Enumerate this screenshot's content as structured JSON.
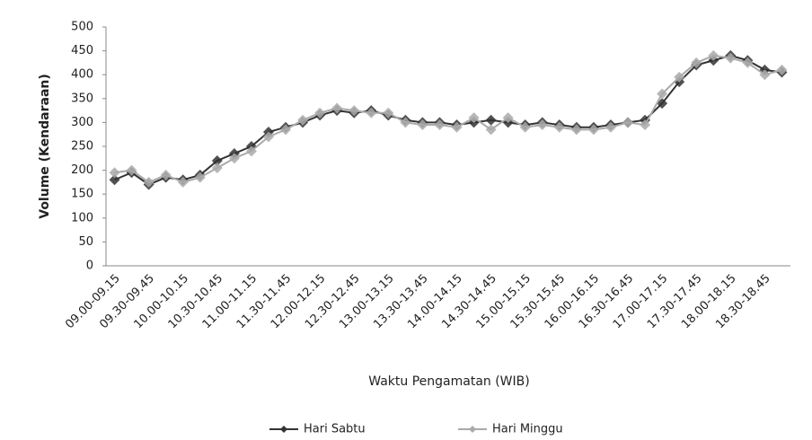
{
  "chart_data": {
    "type": "line",
    "y_label": "Volume (Kendaraan)",
    "x_label": "Waktu Pengamatan (WIB)",
    "categories": [
      "09.00-09.15",
      null,
      "09.30-09.45",
      null,
      "10.00-10.15",
      null,
      "10.30-10.45",
      null,
      "11.00-11.15",
      null,
      "11.30-11.45",
      null,
      "12.00-12.15",
      null,
      "12.30-12.45",
      null,
      "13.00-13.15",
      null,
      "13.30-13.45",
      null,
      "14.00-14.15",
      null,
      "14.30-14.45",
      null,
      "15.00-15.15",
      null,
      "15.30-15.45",
      null,
      "16.00-16.15",
      null,
      "16.30-16.45",
      null,
      "17.00-17.15",
      null,
      "17.30-17.45",
      null,
      "18.00-18.15",
      null,
      "18.30-18.45",
      null
    ],
    "series": [
      {
        "name": "Hari Sabtu",
        "color": "#333333",
        "values": [
          180,
          195,
          170,
          185,
          180,
          190,
          220,
          235,
          250,
          280,
          290,
          300,
          315,
          325,
          320,
          325,
          315,
          305,
          300,
          300,
          295,
          300,
          305,
          300,
          295,
          300,
          295,
          290,
          290,
          295,
          300,
          305,
          340,
          385,
          420,
          430,
          440,
          430,
          410,
          405
        ]
      },
      {
        "name": "Hari Minggu",
        "color": "#aaaaaa",
        "values": [
          195,
          200,
          175,
          190,
          175,
          185,
          205,
          225,
          240,
          270,
          285,
          305,
          320,
          330,
          325,
          320,
          320,
          300,
          295,
          295,
          290,
          310,
          285,
          310,
          290,
          295,
          290,
          285,
          285,
          290,
          300,
          295,
          360,
          395,
          425,
          440,
          435,
          425,
          400,
          410
        ]
      }
    ],
    "ylim": [
      0,
      500
    ],
    "yticks": [
      0,
      50,
      100,
      150,
      200,
      250,
      300,
      350,
      400,
      450,
      500
    ],
    "grid": false,
    "legend": "bottom"
  }
}
